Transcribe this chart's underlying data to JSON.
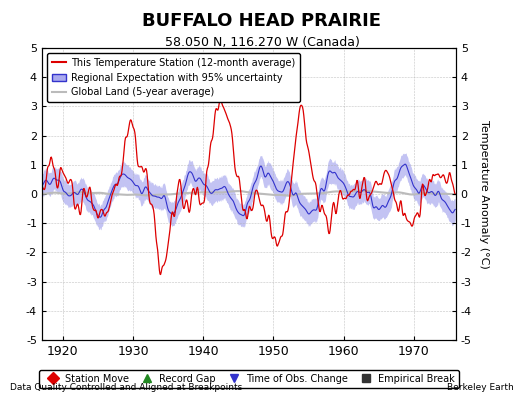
{
  "title": "BUFFALO HEAD PRAIRIE",
  "subtitle": "58.050 N, 116.270 W (Canada)",
  "ylabel": "Temperature Anomaly (°C)",
  "xlabel_left": "Data Quality Controlled and Aligned at Breakpoints",
  "xlabel_right": "Berkeley Earth",
  "ylim": [
    -5,
    5
  ],
  "xlim": [
    1917,
    1976
  ],
  "xticks": [
    1920,
    1930,
    1940,
    1950,
    1960,
    1970
  ],
  "yticks": [
    -5,
    -4,
    -3,
    -2,
    -1,
    0,
    1,
    2,
    3,
    4,
    5
  ],
  "station_color": "#DD0000",
  "regional_color": "#3333CC",
  "regional_fill_color": "#AAAAEE",
  "global_color": "#BBBBBB",
  "background_color": "#FFFFFF",
  "legend_items": [
    "This Temperature Station (12-month average)",
    "Regional Expectation with 95% uncertainty",
    "Global Land (5-year average)"
  ],
  "bottom_legend": [
    {
      "marker": "D",
      "color": "#DD0000",
      "label": "Station Move"
    },
    {
      "marker": "^",
      "color": "#228822",
      "label": "Record Gap"
    },
    {
      "marker": "v",
      "color": "#3333CC",
      "label": "Time of Obs. Change"
    },
    {
      "marker": "s",
      "color": "#333333",
      "label": "Empirical Break"
    }
  ],
  "seed": 42
}
